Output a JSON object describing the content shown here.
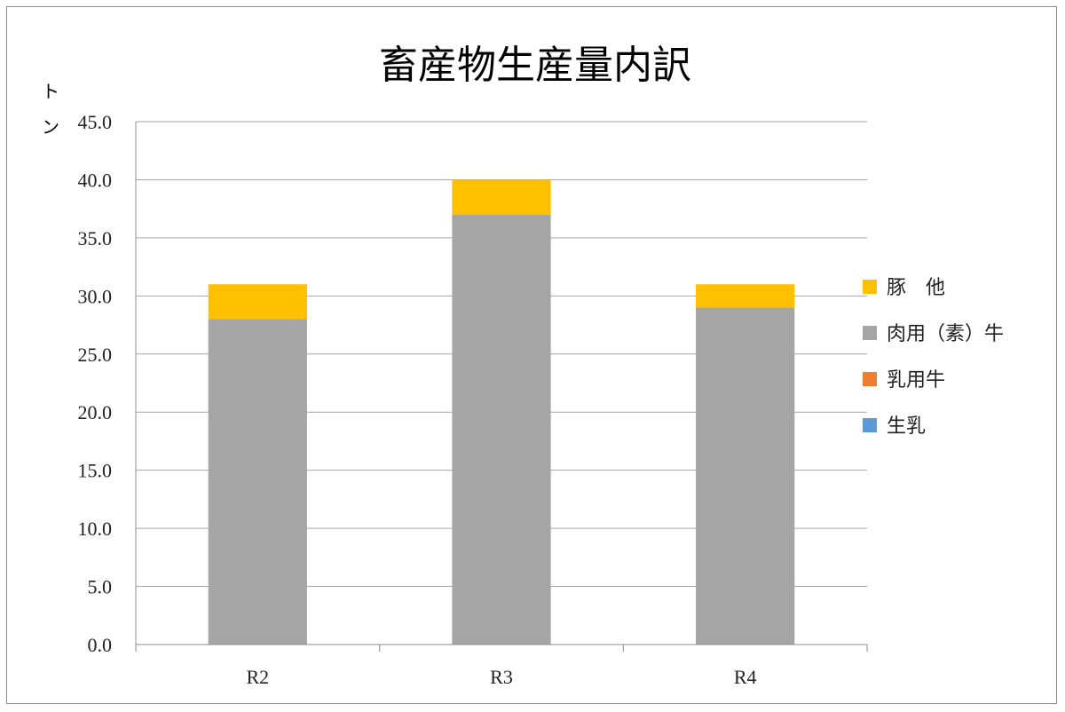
{
  "chart_data": {
    "type": "bar",
    "stacked": true,
    "title": "畜産物生産量内訳",
    "ylabel": "トン",
    "xlabel": "",
    "categories": [
      "R2",
      "R3",
      "R4"
    ],
    "ylim": [
      0,
      45
    ],
    "y_tick_step": 5,
    "y_tick_labels": [
      "0.0",
      "5.0",
      "10.0",
      "15.0",
      "20.0",
      "25.0",
      "30.0",
      "35.0",
      "40.0",
      "45.0"
    ],
    "grid": true,
    "legend_position": "right",
    "series": [
      {
        "name": "生乳",
        "color": "#5b9bd5",
        "values": [
          0,
          0,
          0
        ]
      },
      {
        "name": "乳用牛",
        "color": "#ed7d31",
        "values": [
          0,
          0,
          0
        ]
      },
      {
        "name": "肉用（素）牛",
        "color": "#a5a5a5",
        "values": [
          28,
          37,
          29
        ]
      },
      {
        "name": "豚　他",
        "color": "#ffc000",
        "values": [
          3,
          3,
          2
        ]
      }
    ]
  }
}
